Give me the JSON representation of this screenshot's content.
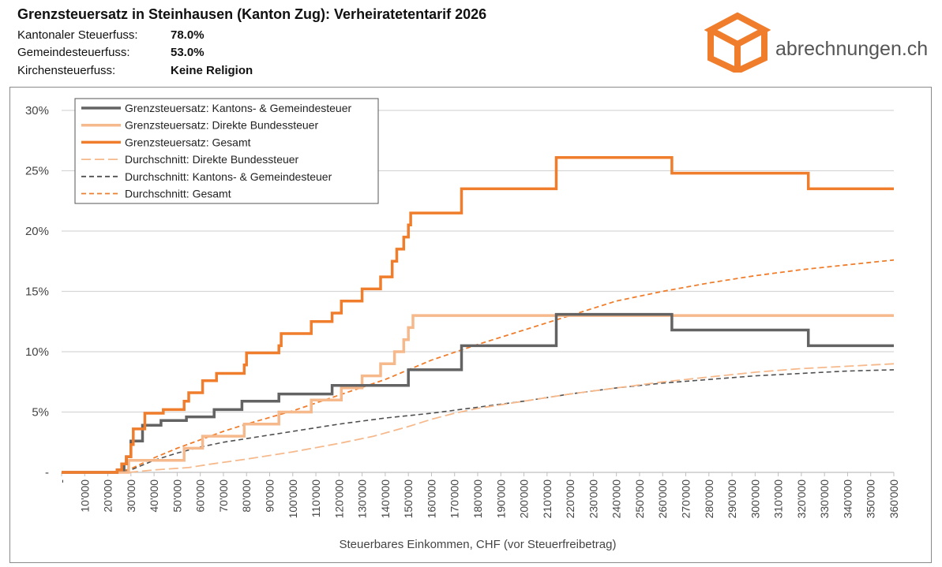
{
  "header": {
    "title": "Grenzsteuersatz in Steinhausen (Kanton Zug): Verheiratetentarif 2026",
    "params": [
      {
        "label": "Kantonaler Steuerfuss:",
        "value": "78.0%"
      },
      {
        "label": "Gemeindesteuerfuss:",
        "value": "53.0%"
      },
      {
        "label": "Kirchensteuerfuss:",
        "value": "Keine Religion"
      }
    ]
  },
  "logo": {
    "text": "abrechnungen.ch",
    "color": "#f07d2b",
    "icon": "box-icon"
  },
  "chart_data": {
    "type": "line",
    "xlabel": "Steuerbares Einkommen, CHF (vor Steuerfreibetrag)",
    "ylabel": "",
    "xlim": [
      0,
      360000
    ],
    "ylim": [
      0,
      0.3
    ],
    "grid": true,
    "legend_position": "top-left",
    "x_tick_labels": [
      "-",
      "10'000",
      "20'000",
      "30'000",
      "40'000",
      "50'000",
      "60'000",
      "70'000",
      "80'000",
      "90'000",
      "100'000",
      "110'000",
      "120'000",
      "130'000",
      "140'000",
      "150'000",
      "160'000",
      "170'000",
      "180'000",
      "190'000",
      "200'000",
      "210'000",
      "220'000",
      "230'000",
      "240'000",
      "250'000",
      "260'000",
      "270'000",
      "280'000",
      "290'000",
      "300'000",
      "310'000",
      "320'000",
      "330'000",
      "340'000",
      "350'000",
      "360'000"
    ],
    "y_tick_labels": [
      "-",
      "5%",
      "10%",
      "15%",
      "20%",
      "25%",
      "30%"
    ],
    "series": [
      {
        "name": "Grenzsteuersatz: Kantons- & Gemeindesteuer",
        "color": "#636363",
        "style": "solid",
        "width": 3.5,
        "step": true,
        "points": [
          [
            0,
            0
          ],
          [
            24000,
            0
          ],
          [
            24000,
            0.002
          ],
          [
            27000,
            0.002
          ],
          [
            27000,
            0.007
          ],
          [
            28000,
            0.007
          ],
          [
            28000,
            0.013
          ],
          [
            30000,
            0.013
          ],
          [
            30000,
            0.026
          ],
          [
            35000,
            0.026
          ],
          [
            35000,
            0.039
          ],
          [
            43000,
            0.039
          ],
          [
            43000,
            0.043
          ],
          [
            54000,
            0.043
          ],
          [
            54000,
            0.046
          ],
          [
            66000,
            0.046
          ],
          [
            66000,
            0.052
          ],
          [
            78000,
            0.052
          ],
          [
            78000,
            0.059
          ],
          [
            94000,
            0.059
          ],
          [
            94000,
            0.065
          ],
          [
            117000,
            0.065
          ],
          [
            117000,
            0.072
          ],
          [
            134000,
            0.072
          ],
          [
            134000,
            0.072
          ],
          [
            150000,
            0.072
          ],
          [
            150000,
            0.085
          ],
          [
            173000,
            0.085
          ],
          [
            173000,
            0.105
          ],
          [
            214000,
            0.105
          ],
          [
            214000,
            0.131
          ],
          [
            264000,
            0.131
          ],
          [
            264000,
            0.118
          ],
          [
            323000,
            0.118
          ],
          [
            323000,
            0.105
          ],
          [
            360000,
            0.105
          ]
        ]
      },
      {
        "name": "Grenzsteuersatz: Direkte Bundessteuer",
        "color": "#f6b98c",
        "style": "solid",
        "width": 3.5,
        "step": true,
        "points": [
          [
            0,
            0
          ],
          [
            29000,
            0
          ],
          [
            29000,
            0.01
          ],
          [
            53000,
            0.01
          ],
          [
            53000,
            0.02
          ],
          [
            61000,
            0.02
          ],
          [
            61000,
            0.03
          ],
          [
            79000,
            0.03
          ],
          [
            79000,
            0.04
          ],
          [
            94000,
            0.04
          ],
          [
            94000,
            0.05
          ],
          [
            108000,
            0.05
          ],
          [
            108000,
            0.06
          ],
          [
            121000,
            0.06
          ],
          [
            121000,
            0.07
          ],
          [
            130000,
            0.07
          ],
          [
            130000,
            0.08
          ],
          [
            138000,
            0.08
          ],
          [
            138000,
            0.09
          ],
          [
            144000,
            0.09
          ],
          [
            144000,
            0.1
          ],
          [
            148000,
            0.1
          ],
          [
            148000,
            0.11
          ],
          [
            150000,
            0.11
          ],
          [
            150000,
            0.12
          ],
          [
            152000,
            0.12
          ],
          [
            152000,
            0.13
          ],
          [
            360000,
            0.13
          ]
        ]
      },
      {
        "name": "Grenzsteuersatz: Gesamt",
        "color": "#f07d2b",
        "style": "solid",
        "width": 3.5,
        "step": true,
        "points": [
          [
            0,
            0
          ],
          [
            24000,
            0
          ],
          [
            24000,
            0.002
          ],
          [
            26000,
            0.002
          ],
          [
            26000,
            0.007
          ],
          [
            28000,
            0.007
          ],
          [
            28000,
            0.013
          ],
          [
            30000,
            0.013
          ],
          [
            30000,
            0.023
          ],
          [
            31000,
            0.023
          ],
          [
            31000,
            0.036
          ],
          [
            36000,
            0.036
          ],
          [
            36000,
            0.049
          ],
          [
            44000,
            0.049
          ],
          [
            44000,
            0.052
          ],
          [
            53000,
            0.052
          ],
          [
            53000,
            0.059
          ],
          [
            55000,
            0.059
          ],
          [
            55000,
            0.066
          ],
          [
            61000,
            0.066
          ],
          [
            61000,
            0.076
          ],
          [
            67000,
            0.076
          ],
          [
            67000,
            0.082
          ],
          [
            79000,
            0.082
          ],
          [
            79000,
            0.089
          ],
          [
            80000,
            0.089
          ],
          [
            80000,
            0.099
          ],
          [
            94000,
            0.099
          ],
          [
            94000,
            0.105
          ],
          [
            95000,
            0.105
          ],
          [
            95000,
            0.115
          ],
          [
            108000,
            0.115
          ],
          [
            108000,
            0.125
          ],
          [
            117000,
            0.125
          ],
          [
            117000,
            0.132
          ],
          [
            121000,
            0.132
          ],
          [
            121000,
            0.142
          ],
          [
            130000,
            0.142
          ],
          [
            130000,
            0.152
          ],
          [
            138000,
            0.152
          ],
          [
            138000,
            0.162
          ],
          [
            143000,
            0.162
          ],
          [
            143000,
            0.175
          ],
          [
            145000,
            0.175
          ],
          [
            145000,
            0.185
          ],
          [
            148000,
            0.185
          ],
          [
            148000,
            0.195
          ],
          [
            150000,
            0.195
          ],
          [
            150000,
            0.205
          ],
          [
            151000,
            0.205
          ],
          [
            151000,
            0.215
          ],
          [
            173000,
            0.215
          ],
          [
            173000,
            0.235
          ],
          [
            214000,
            0.235
          ],
          [
            214000,
            0.261
          ],
          [
            264000,
            0.261
          ],
          [
            264000,
            0.248
          ],
          [
            323000,
            0.248
          ],
          [
            323000,
            0.235
          ],
          [
            360000,
            0.235
          ]
        ]
      },
      {
        "name": "Durchschnitt: Direkte Bundessteuer",
        "color": "#f6b98c",
        "style": "longdash",
        "width": 1.8,
        "step": false,
        "points": [
          [
            0,
            0
          ],
          [
            29000,
            0
          ],
          [
            40000,
            0.002
          ],
          [
            55000,
            0.004
          ],
          [
            65000,
            0.007
          ],
          [
            80000,
            0.011
          ],
          [
            100000,
            0.017
          ],
          [
            120000,
            0.024
          ],
          [
            135000,
            0.03
          ],
          [
            150000,
            0.038
          ],
          [
            160000,
            0.044
          ],
          [
            170000,
            0.049
          ],
          [
            180000,
            0.053
          ],
          [
            200000,
            0.059
          ],
          [
            220000,
            0.065
          ],
          [
            240000,
            0.07
          ],
          [
            260000,
            0.075
          ],
          [
            280000,
            0.079
          ],
          [
            300000,
            0.083
          ],
          [
            320000,
            0.086
          ],
          [
            340000,
            0.088
          ],
          [
            360000,
            0.09
          ]
        ]
      },
      {
        "name": "Durchschnitt: Kantons- & Gemeindesteuer",
        "color": "#505050",
        "style": "dash",
        "width": 1.6,
        "step": false,
        "points": [
          [
            0,
            0
          ],
          [
            24000,
            0
          ],
          [
            30000,
            0.002
          ],
          [
            40000,
            0.01
          ],
          [
            50000,
            0.016
          ],
          [
            60000,
            0.021
          ],
          [
            70000,
            0.025
          ],
          [
            80000,
            0.028
          ],
          [
            100000,
            0.034
          ],
          [
            120000,
            0.04
          ],
          [
            140000,
            0.045
          ],
          [
            160000,
            0.049
          ],
          [
            180000,
            0.054
          ],
          [
            200000,
            0.059
          ],
          [
            220000,
            0.065
          ],
          [
            240000,
            0.07
          ],
          [
            260000,
            0.074
          ],
          [
            280000,
            0.077
          ],
          [
            300000,
            0.08
          ],
          [
            320000,
            0.082
          ],
          [
            340000,
            0.084
          ],
          [
            360000,
            0.085
          ]
        ]
      },
      {
        "name": "Durchschnitt: Gesamt",
        "color": "#f07d2b",
        "style": "dash",
        "width": 1.8,
        "step": false,
        "points": [
          [
            0,
            0
          ],
          [
            24000,
            0
          ],
          [
            30000,
            0.003
          ],
          [
            40000,
            0.012
          ],
          [
            50000,
            0.02
          ],
          [
            60000,
            0.027
          ],
          [
            70000,
            0.034
          ],
          [
            80000,
            0.04
          ],
          [
            100000,
            0.051
          ],
          [
            120000,
            0.064
          ],
          [
            140000,
            0.077
          ],
          [
            160000,
            0.093
          ],
          [
            180000,
            0.106
          ],
          [
            200000,
            0.118
          ],
          [
            220000,
            0.13
          ],
          [
            240000,
            0.142
          ],
          [
            260000,
            0.15
          ],
          [
            280000,
            0.157
          ],
          [
            300000,
            0.163
          ],
          [
            320000,
            0.168
          ],
          [
            340000,
            0.172
          ],
          [
            360000,
            0.176
          ]
        ]
      }
    ]
  }
}
